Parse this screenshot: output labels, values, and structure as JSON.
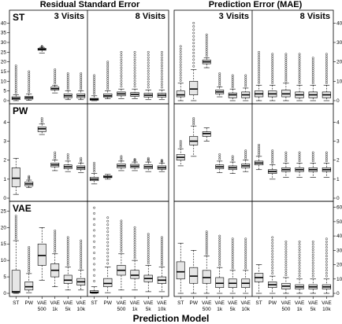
{
  "chart_data": {
    "type": "boxplot",
    "xlabel": "Prediction Model",
    "columns": [
      "Residual Standard Error",
      "Prediction Error (MAE)"
    ],
    "visits": [
      "3 Visits",
      "8 Visits"
    ],
    "rows": [
      "ST",
      "PW",
      "VAE"
    ],
    "models": [
      "ST",
      "PW",
      "VAE\n500",
      "VAE\n1k",
      "VAE\n5k",
      "VAE\n10k"
    ],
    "model_labels_top": [
      "ST",
      "PW",
      "VAE",
      "VAE",
      "VAE",
      "VAE"
    ],
    "model_labels_bottom": [
      "",
      "",
      "500",
      "1k",
      "5k",
      "10k"
    ],
    "panels": [
      {
        "row": "ST",
        "col": 0,
        "ylim": [
          0,
          45
        ],
        "ticks": [
          0,
          5,
          10,
          15,
          20,
          25,
          30,
          35,
          40
        ],
        "axis": "left",
        "groups": [
          {
            "visit": "3 Visits",
            "boxes": [
              [
                0,
                0.5,
                1.2,
                2,
                3,
                18
              ],
              [
                0.2,
                0.8,
                1.5,
                2.2,
                3.5,
                15
              ],
              [
                24.5,
                26,
                26.5,
                27,
                27.5,
                28
              ],
              [
                4,
                5.5,
                6.2,
                7,
                8,
                16
              ],
              [
                0.5,
                1.5,
                2.5,
                3.5,
                5,
                14
              ],
              [
                0.5,
                1.5,
                2.5,
                3.5,
                5,
                14
              ]
            ]
          },
          {
            "visit": "8 Visits",
            "boxes": [
              [
                0,
                0.2,
                0.7,
                1.2,
                2.5,
                13
              ],
              [
                1,
                1.8,
                2.5,
                3.5,
                5,
                20
              ],
              [
                1,
                2.5,
                3.5,
                4.5,
                6,
                25
              ],
              [
                1,
                2.2,
                3.2,
                4.2,
                6,
                25
              ],
              [
                0.5,
                1.8,
                2.8,
                3.8,
                5.5,
                25
              ],
              [
                0.5,
                1.8,
                2.8,
                3.8,
                5.5,
                25
              ]
            ]
          }
        ]
      },
      {
        "row": "ST",
        "col": 1,
        "ylim": [
          0,
          45
        ],
        "ticks": [
          0,
          10,
          20,
          30,
          40
        ],
        "axis": "right",
        "groups": [
          {
            "visit": "3 Visits",
            "boxes": [
              [
                0,
                2,
                3,
                5,
                9,
                28
              ],
              [
                0,
                3,
                6,
                10,
                16,
                40
              ],
              [
                17,
                19,
                20,
                21,
                22,
                34
              ],
              [
                2,
                3.5,
                4.5,
                5.5,
                7,
                14
              ],
              [
                0,
                1.5,
                3,
                4,
                6,
                13
              ],
              [
                0,
                1.5,
                3,
                4.5,
                6.5,
                13
              ]
            ]
          },
          {
            "visit": "8 Visits",
            "boxes": [
              [
                0,
                2,
                3.5,
                5,
                8,
                25
              ],
              [
                0,
                2,
                3.5,
                5,
                8,
                24
              ],
              [
                0,
                2,
                3.5,
                5.5,
                9,
                24
              ],
              [
                0,
                1.5,
                3,
                4.5,
                8,
                24
              ],
              [
                0,
                1.5,
                3,
                4.5,
                8,
                22
              ],
              [
                0,
                1.5,
                3,
                4.5,
                8,
                24
              ]
            ]
          }
        ]
      },
      {
        "row": "PW",
        "col": 0,
        "ylim": [
          0,
          4.8
        ],
        "ticks": [
          0,
          1,
          2,
          3,
          4
        ],
        "axis": "left",
        "groups": [
          {
            "visit": "3 Visits",
            "boxes": [
              [
                0.2,
                0.6,
                1.05,
                1.6,
                2.1,
                null
              ],
              [
                0.55,
                0.65,
                0.75,
                0.85,
                0.95,
                1.15
              ],
              [
                3.35,
                3.5,
                3.65,
                3.75,
                3.9,
                4.2
              ],
              [
                1.45,
                1.65,
                1.75,
                1.85,
                2.0,
                2.4
              ],
              [
                1.4,
                1.55,
                1.65,
                1.75,
                1.95,
                2.3
              ],
              [
                1.35,
                1.5,
                1.6,
                1.7,
                1.85,
                2.1
              ]
            ]
          },
          {
            "visit": "8 Visits",
            "boxes": [
              [
                0.75,
                0.92,
                1.0,
                1.1,
                1.3,
                1.85
              ],
              [
                1.0,
                1.08,
                1.12,
                1.18,
                1.25,
                null
              ],
              [
                1.45,
                1.6,
                1.7,
                1.8,
                1.95,
                2.2
              ],
              [
                1.45,
                1.6,
                1.68,
                1.78,
                1.9,
                2.05
              ],
              [
                1.4,
                1.55,
                1.65,
                1.75,
                1.9,
                2.1
              ],
              [
                1.4,
                1.52,
                1.6,
                1.7,
                1.85,
                2.0
              ]
            ]
          }
        ]
      },
      {
        "row": "PW",
        "col": 1,
        "ylim": [
          0,
          4.8
        ],
        "ticks": [
          0,
          1,
          2,
          3,
          4
        ],
        "axis": "right",
        "groups": [
          {
            "visit": "3 Visits",
            "boxes": [
              [
                1.7,
                2.0,
                2.15,
                2.3,
                2.6,
                3.0
              ],
              [
                2.2,
                2.8,
                3.0,
                3.25,
                3.8,
                4.2
              ],
              [
                3.0,
                3.25,
                3.4,
                3.5,
                3.7,
                null
              ],
              [
                1.35,
                1.55,
                1.65,
                1.75,
                1.95,
                2.3
              ],
              [
                1.3,
                1.5,
                1.6,
                1.7,
                1.9,
                2.2
              ],
              [
                1.4,
                1.6,
                1.7,
                1.8,
                2.0,
                2.5
              ]
            ]
          },
          {
            "visit": "8 Visits",
            "boxes": [
              [
                1.5,
                1.75,
                1.85,
                1.95,
                2.2,
                2.8
              ],
              [
                1.0,
                1.3,
                1.4,
                1.5,
                1.75,
                2.5
              ],
              [
                1.1,
                1.4,
                1.5,
                1.6,
                1.85,
                2.4
              ],
              [
                1.1,
                1.4,
                1.5,
                1.6,
                1.85,
                2.4
              ],
              [
                1.1,
                1.4,
                1.5,
                1.6,
                1.85,
                2.4
              ],
              [
                1.1,
                1.4,
                1.5,
                1.6,
                1.85,
                2.4
              ]
            ]
          }
        ]
      },
      {
        "row": "VAE",
        "col": 0,
        "ylim": [
          0,
          27
        ],
        "ticks": [
          0,
          5,
          10,
          15,
          20,
          25
        ],
        "axis": "left",
        "groups": [
          {
            "visit": "3 Visits",
            "boxes": [
              [
                0,
                0.2,
                0.5,
                7,
                16,
                23.5
              ],
              [
                0.2,
                1,
                2,
                3.5,
                6,
                14
              ],
              [
                4,
                8.5,
                11.5,
                15,
                20,
                null
              ],
              [
                2,
                5,
                7,
                9,
                12,
                19
              ],
              [
                1,
                3,
                4,
                5.5,
                8,
                17
              ],
              [
                1,
                2.5,
                3.5,
                4.5,
                7,
                16
              ]
            ]
          },
          {
            "visit": "8 Visits",
            "boxes": [
              [
                0,
                0.1,
                0.3,
                0.8,
                2,
                26
              ],
              [
                0.2,
                2,
                3,
                4.5,
                8,
                23
              ],
              [
                1,
                5.5,
                7,
                8.5,
                12,
                22
              ],
              [
                1,
                4.5,
                5.5,
                7,
                10,
                20
              ],
              [
                0.5,
                3.5,
                4.5,
                5.5,
                8.5,
                18
              ],
              [
                0.5,
                3,
                4,
                5,
                8,
                17
              ]
            ]
          }
        ]
      },
      {
        "row": "VAE",
        "col": 1,
        "ylim": [
          0,
          62
        ],
        "ticks": [
          0,
          10,
          20,
          30,
          40,
          50,
          60
        ],
        "axis": "right",
        "groups": [
          {
            "visit": "3 Visits",
            "boxes": [
              [
                0,
                10,
                15,
                22,
                35,
                null
              ],
              [
                0,
                7,
                12,
                18,
                30,
                null
              ],
              [
                0,
                7,
                11,
                16,
                26,
                43
              ],
              [
                0,
                4,
                7,
                11,
                18,
                40
              ],
              [
                0,
                4,
                7,
                10,
                16,
                38
              ],
              [
                0,
                4,
                7,
                10,
                16,
                38
              ]
            ]
          },
          {
            "visit": "8 Visits",
            "boxes": [
              [
                0,
                8,
                11,
                14,
                20,
                null
              ],
              [
                0,
                4,
                6,
                8,
                12,
                39
              ],
              [
                0,
                3,
                5,
                7,
                11,
                36
              ],
              [
                0,
                3,
                4.5,
                6,
                10,
                36
              ],
              [
                0,
                3,
                4.5,
                6,
                10,
                36
              ],
              [
                0,
                3,
                4.5,
                6,
                10,
                38
              ]
            ]
          }
        ]
      }
    ]
  }
}
